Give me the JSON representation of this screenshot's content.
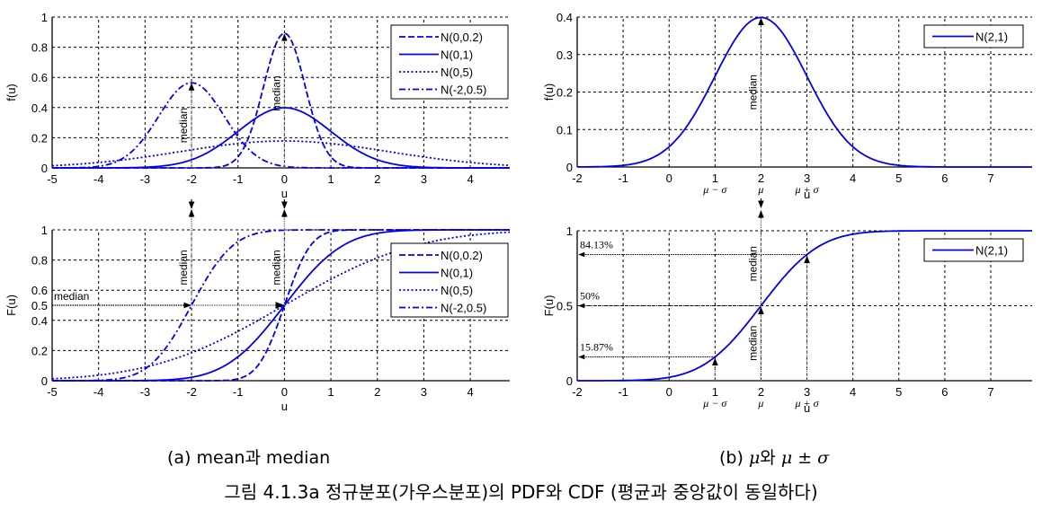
{
  "caption": {
    "subfig_a": "(a) mean과 median",
    "subfig_b_prefix": "(b) ",
    "subfig_b_mu": "μ",
    "subfig_b_mid": "와 ",
    "subfig_b_mu2": "μ ± σ",
    "main": "그림 4.1.3a 정규분포(가우스분포)의 PDF와 CDF (평균과 중앙값이 동일하다)"
  },
  "colors": {
    "curve": "#0000ee",
    "grid": "#000000",
    "annotation": "#777777"
  },
  "chart_data": [
    {
      "id": "a-pdf",
      "type": "line",
      "title": "",
      "xlabel": "u",
      "ylabel": "f(u)",
      "xlim": [
        -5,
        4.85
      ],
      "ylim": [
        0,
        1
      ],
      "xticks": [
        -5,
        -4,
        -3,
        -2,
        -1,
        0,
        1,
        2,
        3,
        4
      ],
      "yticks": [
        0,
        0.2,
        0.4,
        0.6,
        0.8,
        1
      ],
      "ytick_labels": [
        "0",
        "0.2",
        "0.4",
        "0.6",
        "0.8",
        "1"
      ],
      "grid": true,
      "legend_position": "upper right",
      "series": [
        {
          "name": "N(0,0.2)",
          "mean": 0,
          "variance": 0.2,
          "style": "dashed",
          "peak": 0.89
        },
        {
          "name": "N(0,1)",
          "mean": 0,
          "variance": 1,
          "style": "solid",
          "peak": 0.4
        },
        {
          "name": "N(0,5)",
          "mean": 0,
          "variance": 5,
          "style": "dotted",
          "peak": 0.18
        },
        {
          "name": "N(-2,0.5)",
          "mean": -2,
          "variance": 0.5,
          "style": "dashdot",
          "peak": 0.56
        }
      ],
      "annotations": [
        {
          "text": "median",
          "x": -2,
          "arrow": "up",
          "rotated": true
        },
        {
          "text": "median",
          "x": 0,
          "arrow": "up",
          "rotated": true
        }
      ]
    },
    {
      "id": "a-cdf",
      "type": "line",
      "title": "",
      "xlabel": "u",
      "ylabel": "F(u)",
      "xlim": [
        -5,
        4.85
      ],
      "ylim": [
        0,
        1
      ],
      "xticks": [
        -5,
        -4,
        -3,
        -2,
        -1,
        0,
        1,
        2,
        3,
        4
      ],
      "yticks": [
        0,
        0.2,
        0.4,
        0.5,
        0.6,
        0.8,
        1
      ],
      "ytick_labels": [
        "0",
        "0.2",
        "0.4",
        "0.5",
        "0.6",
        "0.8",
        "1"
      ],
      "grid": true,
      "legend_position": "upper right",
      "series": [
        {
          "name": "N(0,0.2)",
          "mean": 0,
          "variance": 0.2,
          "style": "dashed"
        },
        {
          "name": "N(0,1)",
          "mean": 0,
          "variance": 1,
          "style": "solid"
        },
        {
          "name": "N(0,5)",
          "mean": 0,
          "variance": 5,
          "style": "dotted"
        },
        {
          "name": "N(-2,0.5)",
          "mean": -2,
          "variance": 0.5,
          "style": "dashdot"
        }
      ],
      "annotations": [
        {
          "text": "median",
          "x": -2,
          "arrow": "up",
          "rotated": true
        },
        {
          "text": "median",
          "x": 0,
          "arrow": "up",
          "rotated": true
        },
        {
          "text": "median",
          "y": 0.5,
          "arrow": "right",
          "rotated": false
        }
      ]
    },
    {
      "id": "b-pdf",
      "type": "line",
      "title": "",
      "xlabel": "u",
      "ylabel": "f(u)",
      "xlim": [
        -2,
        7.9
      ],
      "ylim": [
        0,
        0.4
      ],
      "xticks": [
        -2,
        -1,
        0,
        1,
        2,
        3,
        4,
        5,
        6,
        7
      ],
      "yticks": [
        0,
        0.1,
        0.2,
        0.3,
        0.4
      ],
      "ytick_labels": [
        "0",
        "0.1",
        "0.2",
        "0.3",
        "0.4"
      ],
      "xtick_sublabels": {
        "1": "μ − σ",
        "2": "μ",
        "3": "μ + σ"
      },
      "grid": true,
      "legend_position": "upper right",
      "series": [
        {
          "name": "N(2,1)",
          "mean": 2,
          "variance": 1,
          "style": "solid",
          "peak": 0.399
        }
      ],
      "annotations": [
        {
          "text": "median",
          "x": 2,
          "arrow": "up",
          "rotated": true
        }
      ]
    },
    {
      "id": "b-cdf",
      "type": "line",
      "title": "",
      "xlabel": "u",
      "ylabel": "F(u)",
      "xlim": [
        -2,
        7.9
      ],
      "ylim": [
        0,
        1
      ],
      "xticks": [
        -2,
        -1,
        0,
        1,
        2,
        3,
        4,
        5,
        6,
        7
      ],
      "yticks": [
        0,
        0.5,
        1
      ],
      "ytick_labels": [
        "0",
        "0.5",
        "1"
      ],
      "xtick_sublabels": {
        "1": "μ − σ",
        "2": "μ",
        "3": "μ + σ"
      },
      "grid": true,
      "legend_position": "upper right",
      "series": [
        {
          "name": "N(2,1)",
          "mean": 2,
          "variance": 1,
          "style": "solid"
        }
      ],
      "annotations": [
        {
          "text": "84.13%",
          "x": 3,
          "y": 0.8413,
          "arrow": "left"
        },
        {
          "text": "50%",
          "x": 2,
          "y": 0.5,
          "arrow": "left"
        },
        {
          "text": "15.87%",
          "x": 1,
          "y": 0.1587,
          "arrow": "left"
        },
        {
          "text": "median",
          "x": 2,
          "arrow": "up",
          "rotated": true
        }
      ]
    }
  ]
}
